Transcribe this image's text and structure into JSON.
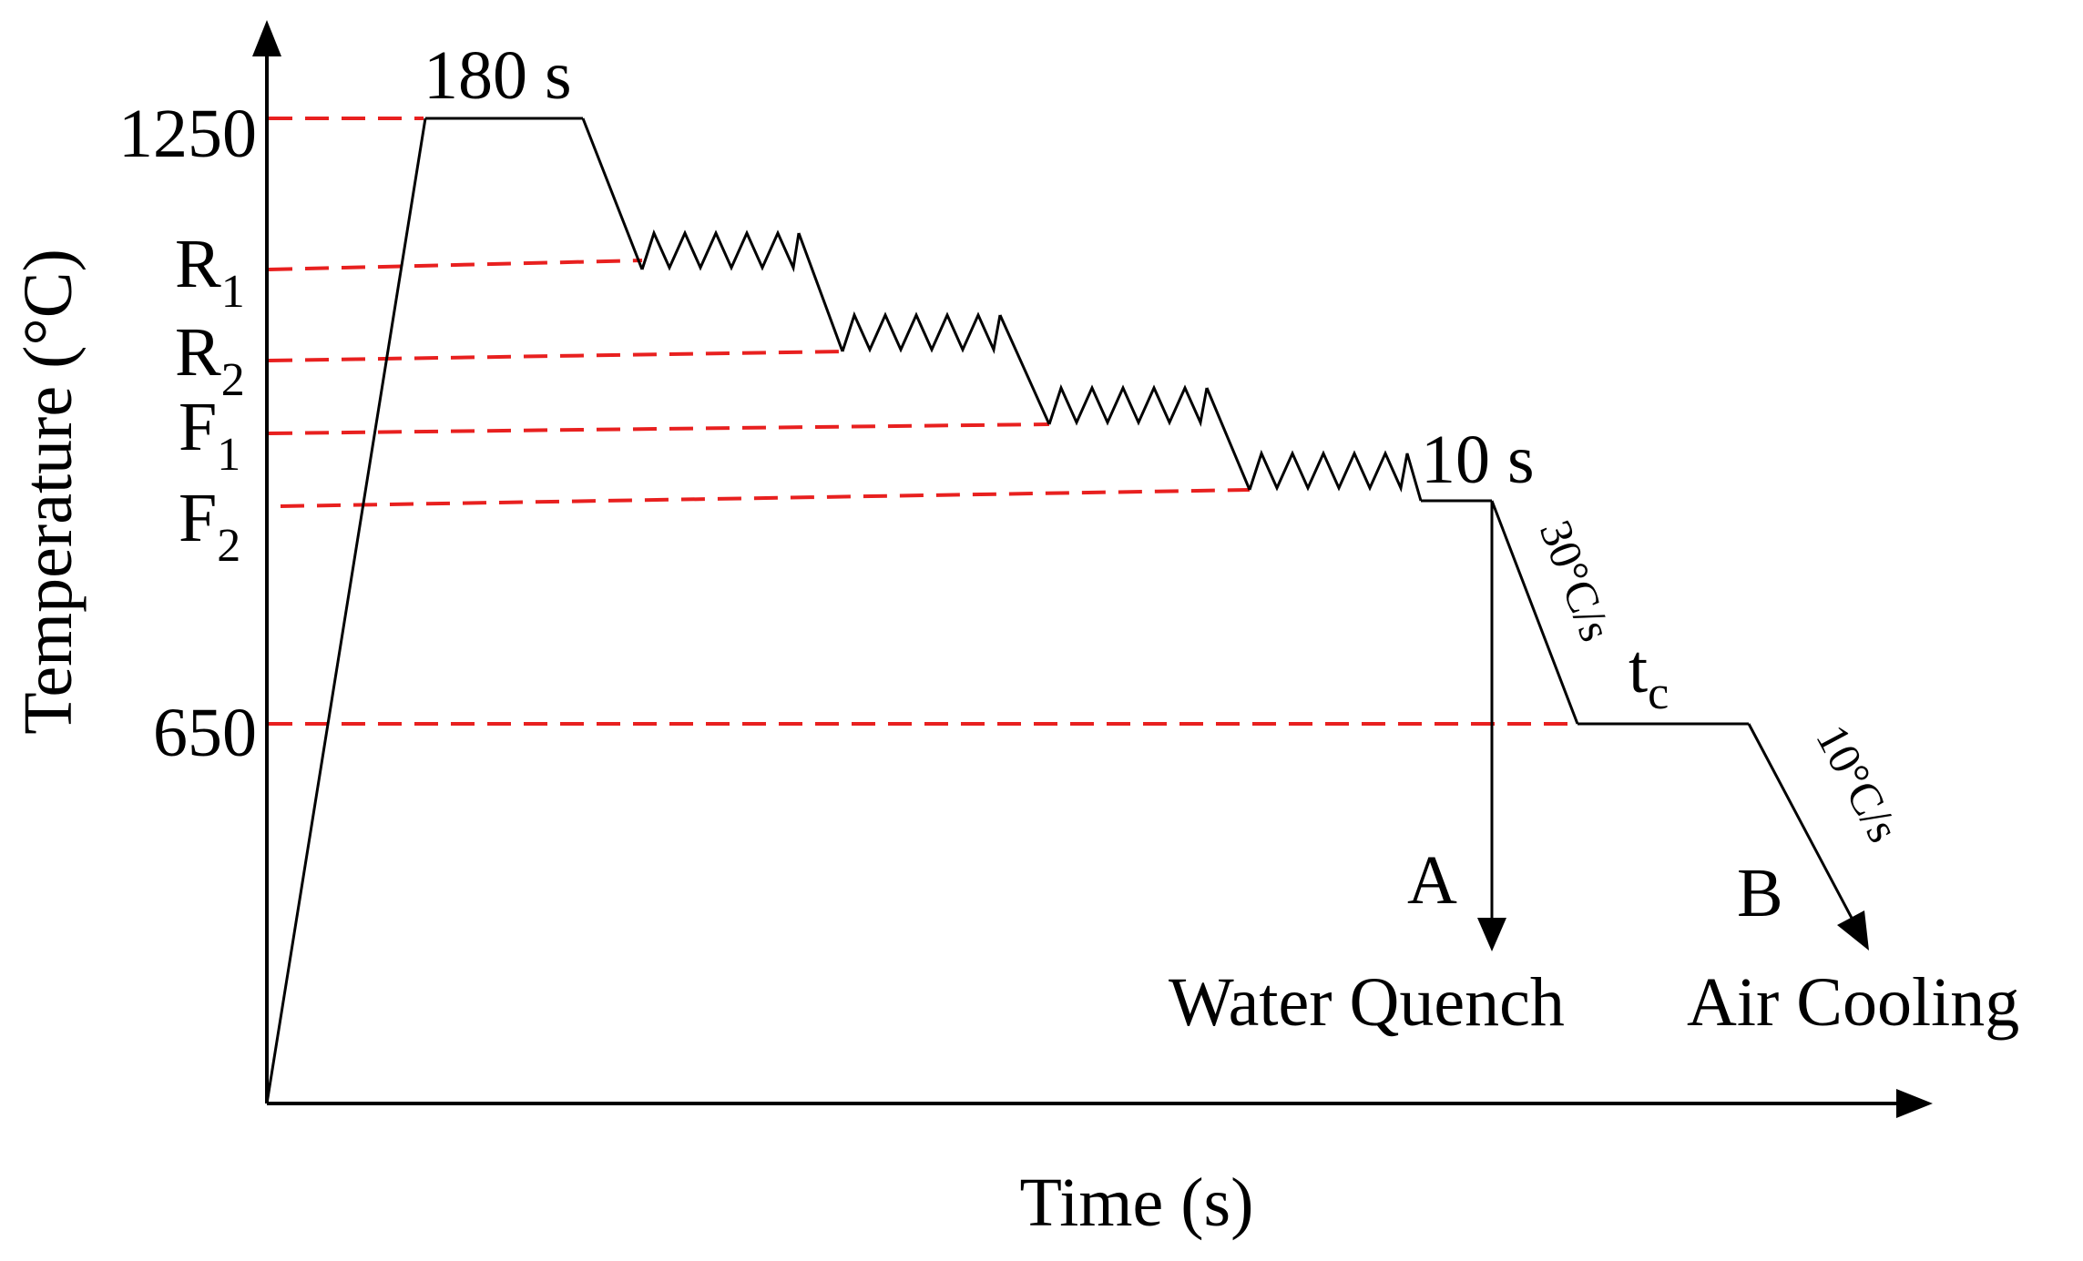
{
  "diagram": {
    "x_axis_label": "Time (s)",
    "y_axis_label": "Temperature (°C)",
    "y_ticks": {
      "t1250": "1250",
      "t650": "650"
    },
    "levels": {
      "r1": {
        "base": "R",
        "sub": "1"
      },
      "r2": {
        "base": "R",
        "sub": "2"
      },
      "f1": {
        "base": "F",
        "sub": "1"
      },
      "f2": {
        "base": "F",
        "sub": "2"
      }
    },
    "hold_soak": "180 s",
    "hold_short": "10 s",
    "hold_coiling": {
      "base": "t",
      "sub": "c"
    },
    "rate_fast": "30°C/s",
    "rate_slow": "10°C/s",
    "route_a": {
      "letter": "A",
      "label": "Water Quench"
    },
    "route_b": {
      "letter": "B",
      "label": "Air Cooling"
    },
    "colors": {
      "process_line": "#000000",
      "guide_line": "#e8201f",
      "axis": "#000000"
    }
  }
}
